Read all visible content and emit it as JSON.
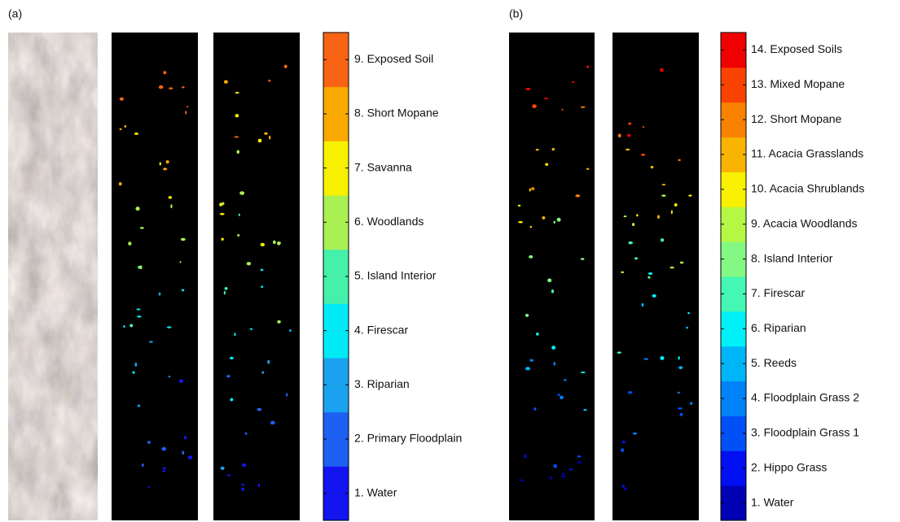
{
  "panels": [
    {
      "label": "(a)",
      "classes": [
        {
          "label": "1. Water",
          "color": "#1414f0"
        },
        {
          "label": "2. Primary Floodplain",
          "color": "#1e60f2"
        },
        {
          "label": "3. Riparian",
          "color": "#1aa2f0"
        },
        {
          "label": "4. Firescar",
          "color": "#00eaf6"
        },
        {
          "label": "5. Island Interior",
          "color": "#44f0aa"
        },
        {
          "label": "6. Woodlands",
          "color": "#aaf052"
        },
        {
          "label": "7. Savanna",
          "color": "#f8f000"
        },
        {
          "label": "8. Short Mopane",
          "color": "#f8aa00"
        },
        {
          "label": "9. Exposed Soil",
          "color": "#f86414"
        }
      ]
    },
    {
      "label": "(b)",
      "classes": [
        {
          "label": "1. Water",
          "color": "#0000b4"
        },
        {
          "label": "2. Hippo Grass",
          "color": "#0010f2"
        },
        {
          "label": "3. Floodplain Grass 1",
          "color": "#0050f8"
        },
        {
          "label": "4. Floodplain Grass 2",
          "color": "#0082f8"
        },
        {
          "label": "5. Reeds",
          "color": "#00b4f8"
        },
        {
          "label": "6. Riparian",
          "color": "#00f0f8"
        },
        {
          "label": "7. Firescar",
          "color": "#44f8b4"
        },
        {
          "label": "8. Island Interior",
          "color": "#84f884"
        },
        {
          "label": "9. Acacia Woodlands",
          "color": "#b4f844"
        },
        {
          "label": "10. Acacia Shrublands",
          "color": "#f8f000"
        },
        {
          "label": "11. Acacia Grasslands",
          "color": "#f8b400"
        },
        {
          "label": "12. Short Mopane",
          "color": "#f88200"
        },
        {
          "label": "13. Mixed Mopane",
          "color": "#f84400"
        },
        {
          "label": "14. Exposed Soils",
          "color": "#f00000"
        }
      ]
    }
  ]
}
